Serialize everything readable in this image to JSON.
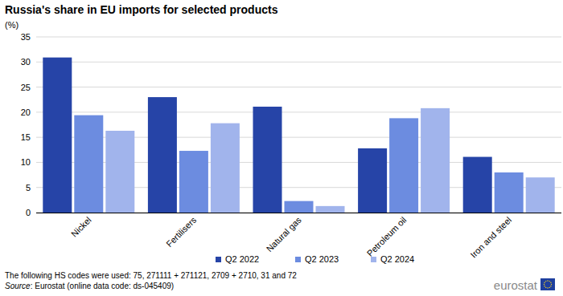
{
  "chart_data": {
    "type": "bar",
    "title": "Russia's share in EU imports for selected products",
    "subtitle": "(%)",
    "categories": [
      "Nickel",
      "Fertilisers",
      "Natural gas",
      "Petroleum oil",
      "Iron and steel"
    ],
    "series": [
      {
        "name": "Q2 2022",
        "color": "#2644a7",
        "values": [
          30.9,
          23.0,
          21.1,
          12.8,
          11.1
        ]
      },
      {
        "name": "Q2 2023",
        "color": "#6c8ce0",
        "values": [
          19.4,
          12.3,
          2.3,
          18.8,
          8.0
        ]
      },
      {
        "name": "Q2 2024",
        "color": "#a1b4ec",
        "values": [
          16.3,
          17.8,
          1.3,
          20.8,
          7.0
        ]
      }
    ],
    "ylim": [
      0,
      35
    ],
    "yticks": [
      0,
      5,
      10,
      15,
      20,
      25,
      30,
      35
    ],
    "grid": true,
    "legend": "bottom",
    "note": "The following HS codes were used: 75, 271111 + 271121, 2709 + 2710, 31 and 72",
    "source": "Source: Eurostat (online data code: ds-045409)",
    "logo_text": "eurostat"
  }
}
